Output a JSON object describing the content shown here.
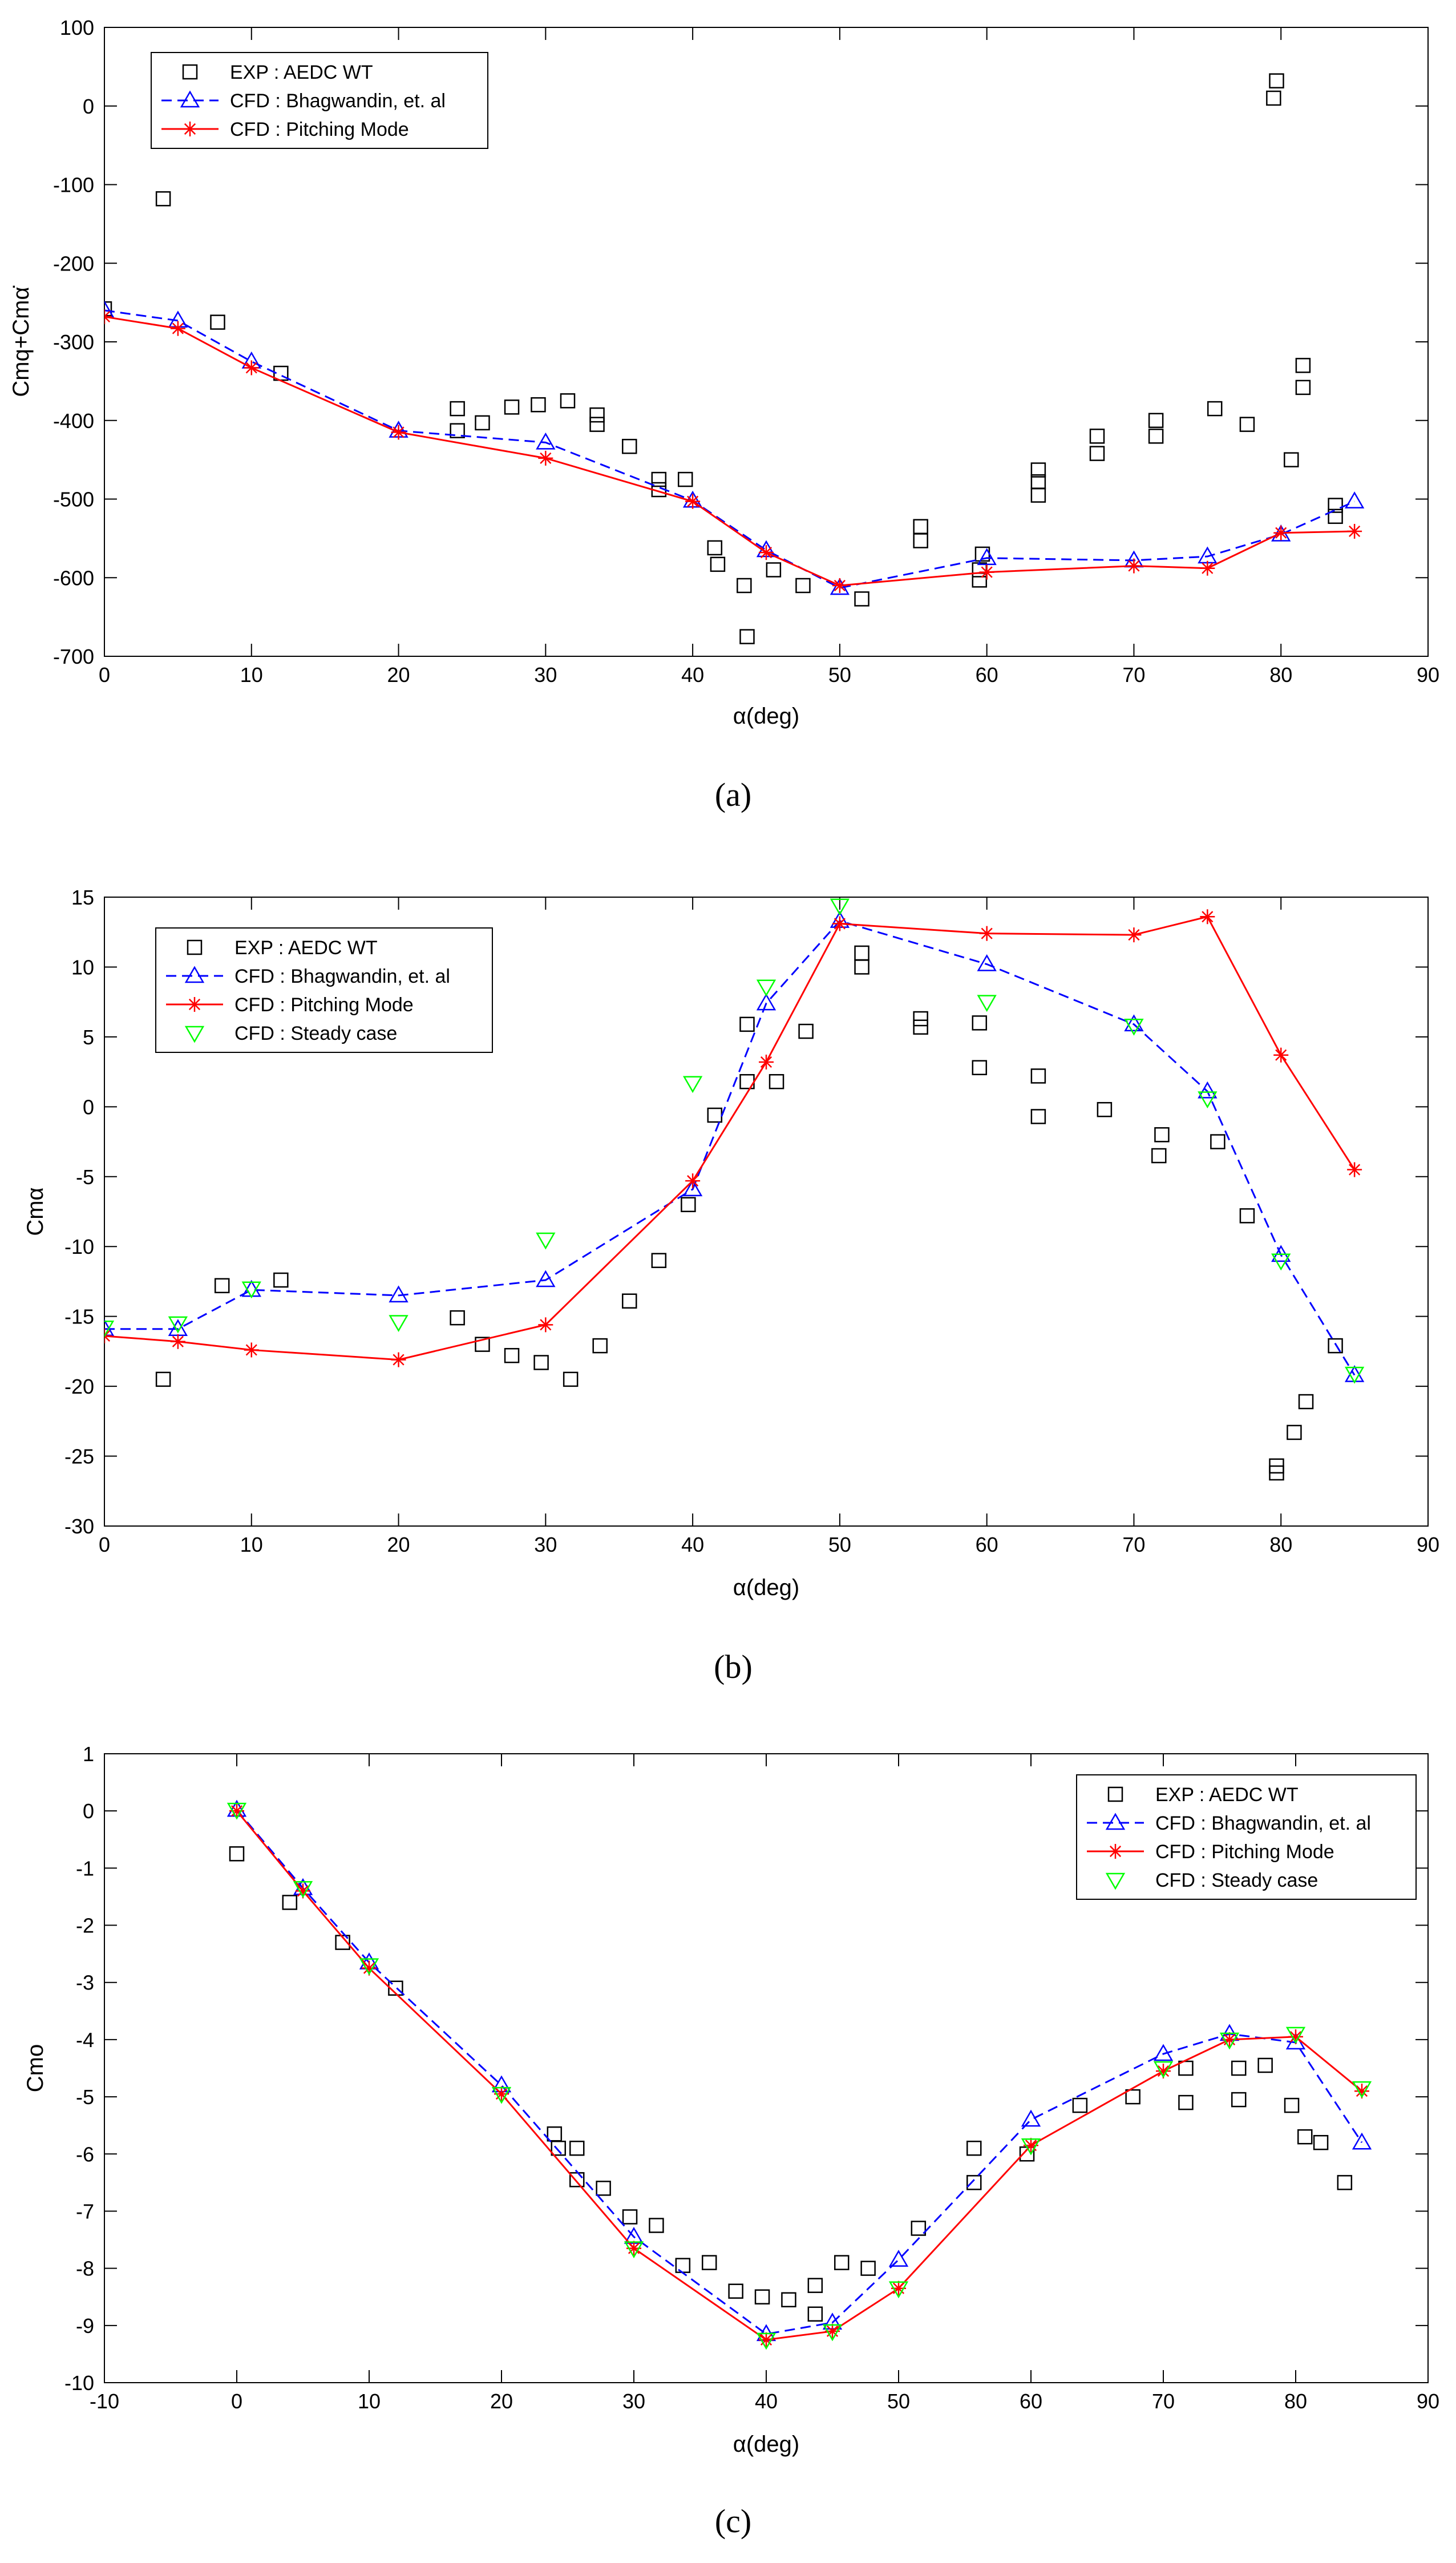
{
  "chart_data": [
    {
      "type": "scatter",
      "panel_label": "(a)",
      "ylabel": "Cmq+Cmα̇",
      "xlabel": "α(deg)",
      "xlim": [
        0,
        90
      ],
      "ylim": [
        -700,
        100
      ],
      "xticks": [
        0,
        10,
        20,
        30,
        40,
        50,
        60,
        70,
        80,
        90
      ],
      "yticks": [
        -700,
        -600,
        -500,
        -400,
        -300,
        -200,
        -100,
        0,
        100
      ],
      "legend_position": "top-left",
      "series": [
        {
          "name": "EXP : AEDC WT",
          "style": "markers",
          "marker": "square",
          "color": "#000000",
          "points": [
            [
              0,
              -258
            ],
            [
              4,
              -118
            ],
            [
              7.7,
              -275
            ],
            [
              12,
              -340
            ],
            [
              24,
              -385
            ],
            [
              24,
              -413
            ],
            [
              25.7,
              -403
            ],
            [
              27.7,
              -383
            ],
            [
              29.5,
              -380
            ],
            [
              31.5,
              -375
            ],
            [
              33.5,
              -393
            ],
            [
              33.5,
              -405
            ],
            [
              35.7,
              -433
            ],
            [
              37.7,
              -475
            ],
            [
              37.7,
              -488
            ],
            [
              39.5,
              -475
            ],
            [
              41.5,
              -562
            ],
            [
              41.7,
              -583
            ],
            [
              43.5,
              -610
            ],
            [
              43.7,
              -675
            ],
            [
              45.5,
              -590
            ],
            [
              47.5,
              -610
            ],
            [
              51.5,
              -627
            ],
            [
              55.5,
              -535
            ],
            [
              55.5,
              -553
            ],
            [
              59.5,
              -590
            ],
            [
              59.5,
              -603
            ],
            [
              59.7,
              -570
            ],
            [
              63.5,
              -463
            ],
            [
              63.5,
              -478
            ],
            [
              63.5,
              -495
            ],
            [
              67.5,
              -420
            ],
            [
              67.5,
              -442
            ],
            [
              71.5,
              -400
            ],
            [
              71.5,
              -420
            ],
            [
              75.5,
              -385
            ],
            [
              77.7,
              -405
            ],
            [
              79.5,
              10
            ],
            [
              79.7,
              32
            ],
            [
              80.7,
              -450
            ],
            [
              81.5,
              -330
            ],
            [
              81.5,
              -358
            ],
            [
              83.7,
              -508
            ],
            [
              83.7,
              -522
            ]
          ]
        },
        {
          "name": "CFD : Bhagwandin, et. al",
          "style": "dashed-line-markers",
          "marker": "triangle-up",
          "color": "#0000ff",
          "points": [
            [
              0,
              -260
            ],
            [
              5,
              -273
            ],
            [
              10,
              -325
            ],
            [
              20,
              -413
            ],
            [
              30,
              -428
            ],
            [
              40,
              -502
            ],
            [
              45,
              -565
            ],
            [
              50,
              -613
            ],
            [
              60,
              -575
            ],
            [
              70,
              -578
            ],
            [
              75,
              -573
            ],
            [
              80,
              -545
            ],
            [
              85,
              -503
            ]
          ]
        },
        {
          "name": "CFD : Pitching Mode",
          "style": "solid-line-markers",
          "marker": "asterisk",
          "color": "#ff0000",
          "points": [
            [
              0,
              -268
            ],
            [
              5,
              -283
            ],
            [
              10,
              -333
            ],
            [
              20,
              -415
            ],
            [
              30,
              -448
            ],
            [
              40,
              -503
            ],
            [
              45,
              -568
            ],
            [
              50,
              -610
            ],
            [
              60,
              -593
            ],
            [
              70,
              -585
            ],
            [
              75,
              -588
            ],
            [
              80,
              -543
            ],
            [
              85,
              -541
            ]
          ]
        }
      ]
    },
    {
      "type": "scatter",
      "panel_label": "(b)",
      "ylabel": "Cmα",
      "xlabel": "α(deg)",
      "xlim": [
        0,
        90
      ],
      "ylim": [
        -30,
        15
      ],
      "xticks": [
        0,
        10,
        20,
        30,
        40,
        50,
        60,
        70,
        80,
        90
      ],
      "yticks": [
        -30,
        -25,
        -20,
        -15,
        -10,
        -5,
        0,
        5,
        10,
        15
      ],
      "legend_position": "top-left",
      "series": [
        {
          "name": "EXP : AEDC WT",
          "style": "markers",
          "marker": "square",
          "color": "#000000",
          "points": [
            [
              4,
              -19.5
            ],
            [
              8,
              -12.8
            ],
            [
              12,
              -12.4
            ],
            [
              24,
              -15.1
            ],
            [
              25.7,
              -17
            ],
            [
              27.7,
              -17.8
            ],
            [
              29.7,
              -18.3
            ],
            [
              31.7,
              -19.5
            ],
            [
              33.7,
              -17.1
            ],
            [
              35.7,
              -13.9
            ],
            [
              37.7,
              -11
            ],
            [
              39.7,
              -7
            ],
            [
              41.5,
              -0.6
            ],
            [
              43.7,
              1.8
            ],
            [
              43.7,
              5.9
            ],
            [
              45.7,
              1.8
            ],
            [
              47.7,
              5.4
            ],
            [
              51.5,
              10
            ],
            [
              51.5,
              11
            ],
            [
              55.5,
              5.7
            ],
            [
              55.5,
              6.3
            ],
            [
              59.5,
              2.8
            ],
            [
              59.5,
              6
            ],
            [
              63.5,
              -0.7
            ],
            [
              63.5,
              2.2
            ],
            [
              68,
              -0.2
            ],
            [
              71.7,
              -3.5
            ],
            [
              71.9,
              -2
            ],
            [
              75.7,
              -2.5
            ],
            [
              77.7,
              -7.8
            ],
            [
              79.7,
              -25.7
            ],
            [
              79.7,
              -26.2
            ],
            [
              80.9,
              -23.3
            ],
            [
              81.7,
              -21.1
            ],
            [
              83.7,
              -17.1
            ]
          ]
        },
        {
          "name": "CFD : Bhagwandin, et. al",
          "style": "dashed-line-markers",
          "marker": "triangle-up",
          "color": "#0000ff",
          "points": [
            [
              0,
              -15.9
            ],
            [
              5,
              -15.9
            ],
            [
              10,
              -13.1
            ],
            [
              20,
              -13.5
            ],
            [
              30,
              -12.4
            ],
            [
              40,
              -5.9
            ],
            [
              45,
              7.4
            ],
            [
              50,
              13.3
            ],
            [
              60,
              10.2
            ],
            [
              70,
              5.9
            ],
            [
              75,
              1.1
            ],
            [
              80,
              -10.6
            ],
            [
              85,
              -19.2
            ]
          ]
        },
        {
          "name": "CFD : Pitching Mode",
          "style": "solid-line-markers",
          "marker": "asterisk",
          "color": "#ff0000",
          "points": [
            [
              0,
              -16.4
            ],
            [
              5,
              -16.8
            ],
            [
              10,
              -17.4
            ],
            [
              20,
              -18.1
            ],
            [
              30,
              -15.6
            ],
            [
              40,
              -5.3
            ],
            [
              45,
              3.2
            ],
            [
              50,
              13.1
            ],
            [
              60,
              12.4
            ],
            [
              70,
              12.3
            ],
            [
              75,
              13.6
            ],
            [
              80,
              3.7
            ],
            [
              85,
              -4.5
            ]
          ]
        },
        {
          "name": "CFD : Steady case",
          "style": "markers",
          "marker": "triangle-down",
          "color": "#00ff00",
          "points": [
            [
              0,
              -15.8
            ],
            [
              5,
              -15.5
            ],
            [
              10,
              -13
            ],
            [
              20,
              -15.4
            ],
            [
              30,
              -9.5
            ],
            [
              40,
              1.7
            ],
            [
              45,
              8.6
            ],
            [
              50,
              14.4
            ],
            [
              60,
              7.5
            ],
            [
              70,
              5.8
            ],
            [
              75,
              0.6
            ],
            [
              80,
              -11
            ],
            [
              85,
              -19.1
            ]
          ]
        }
      ]
    },
    {
      "type": "scatter",
      "panel_label": "(c)",
      "ylabel": "Cmo",
      "xlabel": "α(deg)",
      "xlim": [
        -10,
        90
      ],
      "ylim": [
        -10,
        1
      ],
      "xticks": [
        -10,
        0,
        10,
        20,
        30,
        40,
        50,
        60,
        70,
        80,
        90
      ],
      "yticks": [
        -10,
        -9,
        -8,
        -7,
        -6,
        -5,
        -4,
        -3,
        -2,
        -1,
        0,
        1
      ],
      "legend_position": "top-right",
      "series": [
        {
          "name": "EXP : AEDC WT",
          "style": "markers",
          "marker": "square",
          "color": "#000000",
          "points": [
            [
              0,
              -0.75
            ],
            [
              4,
              -1.6
            ],
            [
              8,
              -2.3
            ],
            [
              12,
              -3.1
            ],
            [
              24,
              -5.65
            ],
            [
              24.3,
              -5.9
            ],
            [
              25.7,
              -6.45
            ],
            [
              25.7,
              -5.9
            ],
            [
              27.7,
              -6.6
            ],
            [
              29.7,
              -7.1
            ],
            [
              31.7,
              -7.25
            ],
            [
              33.7,
              -7.95
            ],
            [
              35.7,
              -7.9
            ],
            [
              37.7,
              -8.4
            ],
            [
              39.7,
              -8.5
            ],
            [
              41.7,
              -8.55
            ],
            [
              43.7,
              -8.3
            ],
            [
              43.7,
              -8.8
            ],
            [
              45.7,
              -7.9
            ],
            [
              47.7,
              -8.0
            ],
            [
              51.5,
              -7.3
            ],
            [
              55.7,
              -5.9
            ],
            [
              55.7,
              -6.5
            ],
            [
              59.7,
              -6.0
            ],
            [
              63.7,
              -5.15
            ],
            [
              67.7,
              -5.0
            ],
            [
              71.7,
              -4.5
            ],
            [
              71.7,
              -5.1
            ],
            [
              75.7,
              -4.5
            ],
            [
              75.7,
              -5.05
            ],
            [
              77.7,
              -4.45
            ],
            [
              79.7,
              -5.15
            ],
            [
              80.7,
              -5.7
            ],
            [
              81.9,
              -5.8
            ],
            [
              83.7,
              -6.5
            ]
          ]
        },
        {
          "name": "CFD : Bhagwandin, et. al",
          "style": "dashed-line-markers",
          "marker": "triangle-up",
          "color": "#0000ff",
          "points": [
            [
              0,
              0.02
            ],
            [
              5,
              -1.35
            ],
            [
              10,
              -2.65
            ],
            [
              20,
              -4.8
            ],
            [
              30,
              -7.45
            ],
            [
              40,
              -9.15
            ],
            [
              45,
              -8.95
            ],
            [
              50,
              -7.85
            ],
            [
              60,
              -5.4
            ],
            [
              70,
              -4.25
            ],
            [
              75,
              -3.9
            ],
            [
              80,
              -4.05
            ],
            [
              85,
              -5.8
            ]
          ]
        },
        {
          "name": "CFD : Pitching Mode",
          "style": "solid-line-markers",
          "marker": "asterisk",
          "color": "#ff0000",
          "points": [
            [
              0,
              0.0
            ],
            [
              5,
              -1.4
            ],
            [
              10,
              -2.75
            ],
            [
              20,
              -4.95
            ],
            [
              30,
              -7.65
            ],
            [
              40,
              -9.25
            ],
            [
              45,
              -9.1
            ],
            [
              50,
              -8.35
            ],
            [
              60,
              -5.85
            ],
            [
              70,
              -4.55
            ],
            [
              75,
              -4.0
            ],
            [
              80,
              -3.95
            ],
            [
              85,
              -4.9
            ]
          ]
        },
        {
          "name": "CFD : Steady case",
          "style": "markers",
          "marker": "triangle-down",
          "color": "#00ff00",
          "points": [
            [
              0,
              0.02
            ],
            [
              5,
              -1.35
            ],
            [
              10,
              -2.7
            ],
            [
              20,
              -4.95
            ],
            [
              30,
              -7.65
            ],
            [
              40,
              -9.25
            ],
            [
              45,
              -9.1
            ],
            [
              50,
              -8.35
            ],
            [
              60,
              -5.85
            ],
            [
              70,
              -4.5
            ],
            [
              75,
              -4.0
            ],
            [
              80,
              -3.9
            ],
            [
              85,
              -4.85
            ]
          ]
        }
      ]
    }
  ]
}
